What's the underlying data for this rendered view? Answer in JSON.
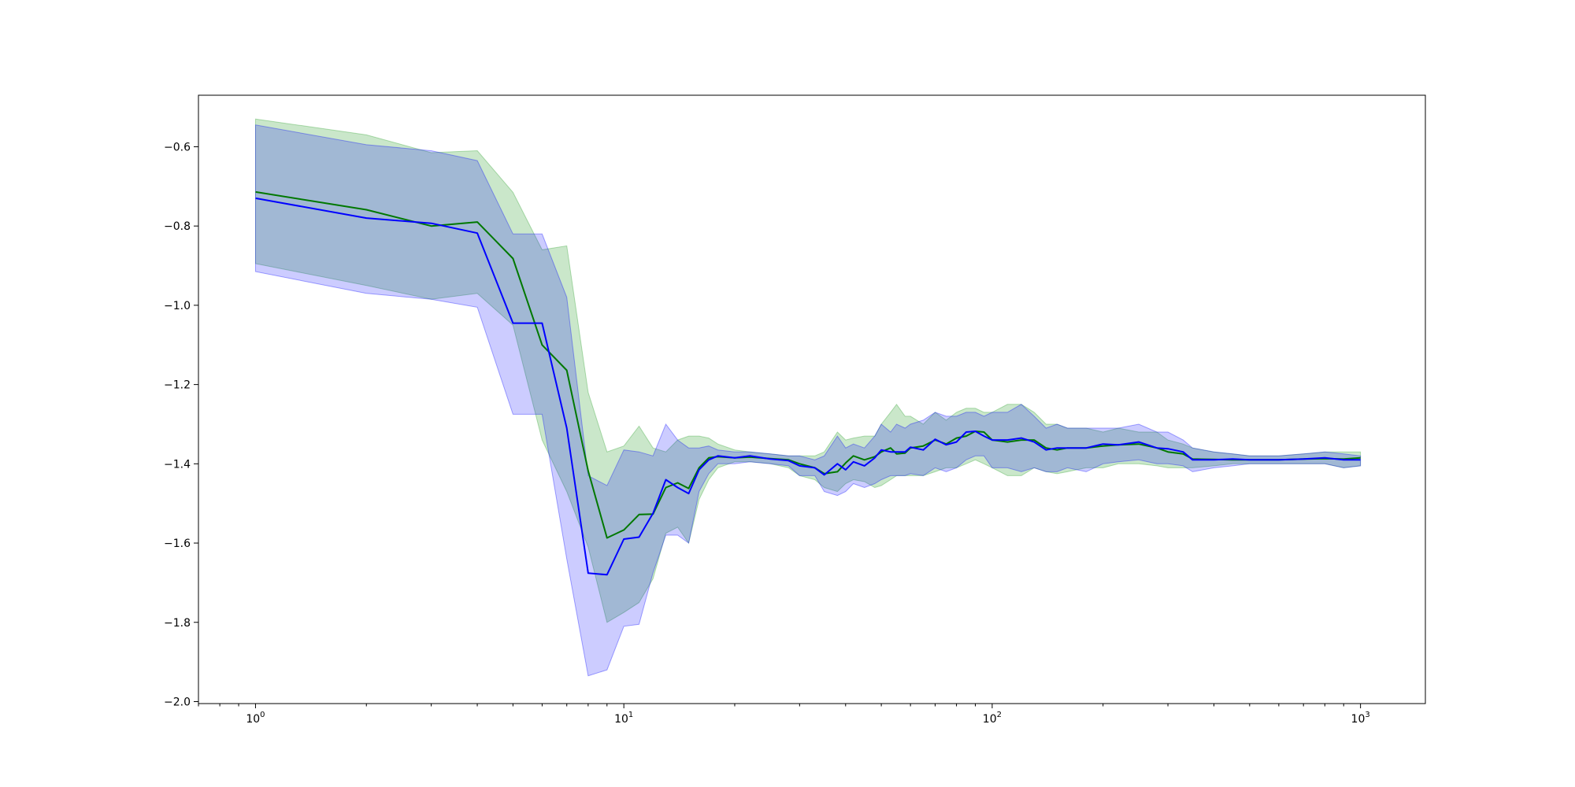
{
  "chart_data": {
    "type": "line",
    "title": "",
    "xlabel": "",
    "ylabel": "",
    "xscale": "log",
    "xlim": [
      0.7,
      1500
    ],
    "ylim": [
      -2.005,
      -0.47
    ],
    "grid": false,
    "legend": "none",
    "x_ticks": [
      {
        "base": "10",
        "exp": "0",
        "value": 1
      },
      {
        "base": "10",
        "exp": "1",
        "value": 10
      },
      {
        "base": "10",
        "exp": "2",
        "value": 100
      },
      {
        "base": "10",
        "exp": "3",
        "value": 1000
      }
    ],
    "y_ticks": [
      {
        "label": "−0.6",
        "value": -0.6
      },
      {
        "label": "−0.8",
        "value": -0.8
      },
      {
        "label": "−1.0",
        "value": -1.0
      },
      {
        "label": "−1.2",
        "value": -1.2
      },
      {
        "label": "−1.4",
        "value": -1.4
      },
      {
        "label": "−1.6",
        "value": -1.6
      },
      {
        "label": "−1.8",
        "value": -1.8
      },
      {
        "label": "−2.0",
        "value": -2.0
      }
    ],
    "series": [
      {
        "color": "#007800",
        "band_color": "#2ca02c",
        "band_opacity": 0.25,
        "x": [
          1,
          2,
          3,
          4,
          5,
          6,
          7,
          8,
          9,
          10,
          11,
          12,
          13,
          14,
          15,
          16,
          17,
          18,
          20,
          22,
          25,
          28,
          30,
          33,
          35,
          38,
          40,
          42,
          45,
          48,
          50,
          53,
          55,
          58,
          60,
          65,
          70,
          75,
          80,
          85,
          90,
          95,
          100,
          110,
          120,
          130,
          140,
          150,
          160,
          180,
          200,
          220,
          250,
          280,
          300,
          330,
          350,
          400,
          450,
          500,
          600,
          700,
          800,
          900,
          1000
        ],
        "y": [
          -0.714,
          -0.759,
          -0.8,
          -0.79,
          -0.882,
          -1.1,
          -1.164,
          -1.418,
          -1.587,
          -1.567,
          -1.528,
          -1.527,
          -1.46,
          -1.448,
          -1.462,
          -1.41,
          -1.385,
          -1.382,
          -1.385,
          -1.383,
          -1.387,
          -1.39,
          -1.4,
          -1.41,
          -1.425,
          -1.42,
          -1.398,
          -1.38,
          -1.39,
          -1.382,
          -1.37,
          -1.36,
          -1.375,
          -1.373,
          -1.36,
          -1.355,
          -1.34,
          -1.35,
          -1.335,
          -1.33,
          -1.318,
          -1.32,
          -1.34,
          -1.345,
          -1.34,
          -1.34,
          -1.36,
          -1.365,
          -1.36,
          -1.36,
          -1.355,
          -1.352,
          -1.35,
          -1.36,
          -1.37,
          -1.375,
          -1.388,
          -1.389,
          -1.39,
          -1.39,
          -1.39,
          -1.388,
          -1.387,
          -1.388,
          -1.385
        ],
        "upper": [
          -0.53,
          -0.57,
          -0.615,
          -0.61,
          -0.715,
          -0.86,
          -0.85,
          -1.22,
          -1.37,
          -1.355,
          -1.305,
          -1.36,
          -1.37,
          -1.34,
          -1.33,
          -1.33,
          -1.335,
          -1.35,
          -1.365,
          -1.37,
          -1.375,
          -1.38,
          -1.38,
          -1.38,
          -1.37,
          -1.32,
          -1.34,
          -1.335,
          -1.33,
          -1.33,
          -1.3,
          -1.27,
          -1.25,
          -1.28,
          -1.28,
          -1.3,
          -1.27,
          -1.29,
          -1.27,
          -1.26,
          -1.26,
          -1.27,
          -1.27,
          -1.25,
          -1.25,
          -1.27,
          -1.3,
          -1.3,
          -1.31,
          -1.31,
          -1.32,
          -1.31,
          -1.32,
          -1.32,
          -1.34,
          -1.35,
          -1.36,
          -1.37,
          -1.375,
          -1.38,
          -1.38,
          -1.375,
          -1.37,
          -1.37,
          -1.37
        ],
        "lower": [
          -0.895,
          -0.95,
          -0.985,
          -0.97,
          -1.05,
          -1.34,
          -1.47,
          -1.61,
          -1.8,
          -1.775,
          -1.75,
          -1.69,
          -1.575,
          -1.56,
          -1.6,
          -1.49,
          -1.44,
          -1.41,
          -1.395,
          -1.395,
          -1.4,
          -1.41,
          -1.43,
          -1.44,
          -1.46,
          -1.47,
          -1.45,
          -1.44,
          -1.445,
          -1.46,
          -1.455,
          -1.44,
          -1.43,
          -1.43,
          -1.43,
          -1.43,
          -1.42,
          -1.41,
          -1.41,
          -1.4,
          -1.39,
          -1.4,
          -1.41,
          -1.43,
          -1.43,
          -1.41,
          -1.42,
          -1.425,
          -1.42,
          -1.41,
          -1.41,
          -1.4,
          -1.4,
          -1.405,
          -1.41,
          -1.41,
          -1.41,
          -1.405,
          -1.4,
          -1.4,
          -1.4,
          -1.4,
          -1.4,
          -1.41,
          -1.405
        ]
      },
      {
        "color": "#0000ff",
        "band_color": "#0000ff",
        "band_opacity": 0.2,
        "x": [
          1,
          2,
          3,
          4,
          5,
          6,
          7,
          8,
          9,
          10,
          11,
          12,
          13,
          14,
          15,
          16,
          17,
          18,
          20,
          22,
          25,
          28,
          30,
          33,
          35,
          38,
          40,
          42,
          45,
          48,
          50,
          53,
          55,
          58,
          60,
          65,
          70,
          75,
          80,
          85,
          90,
          95,
          100,
          110,
          120,
          130,
          140,
          150,
          160,
          180,
          200,
          220,
          250,
          280,
          300,
          330,
          350,
          400,
          450,
          500,
          600,
          700,
          800,
          900,
          1000
        ],
        "y": [
          -0.73,
          -0.78,
          -0.793,
          -0.818,
          -1.045,
          -1.045,
          -1.31,
          -1.676,
          -1.68,
          -1.59,
          -1.585,
          -1.525,
          -1.44,
          -1.46,
          -1.475,
          -1.415,
          -1.39,
          -1.38,
          -1.385,
          -1.38,
          -1.388,
          -1.392,
          -1.405,
          -1.41,
          -1.428,
          -1.4,
          -1.415,
          -1.395,
          -1.405,
          -1.385,
          -1.365,
          -1.37,
          -1.37,
          -1.37,
          -1.358,
          -1.365,
          -1.338,
          -1.352,
          -1.345,
          -1.32,
          -1.318,
          -1.33,
          -1.34,
          -1.34,
          -1.335,
          -1.345,
          -1.365,
          -1.36,
          -1.36,
          -1.36,
          -1.35,
          -1.352,
          -1.345,
          -1.36,
          -1.362,
          -1.37,
          -1.39,
          -1.39,
          -1.388,
          -1.39,
          -1.39,
          -1.388,
          -1.385,
          -1.39,
          -1.39
        ],
        "upper": [
          -0.545,
          -0.595,
          -0.61,
          -0.635,
          -0.82,
          -0.82,
          -0.98,
          -1.43,
          -1.455,
          -1.365,
          -1.37,
          -1.38,
          -1.3,
          -1.34,
          -1.36,
          -1.36,
          -1.355,
          -1.365,
          -1.37,
          -1.37,
          -1.375,
          -1.38,
          -1.38,
          -1.39,
          -1.38,
          -1.33,
          -1.36,
          -1.35,
          -1.36,
          -1.33,
          -1.3,
          -1.32,
          -1.3,
          -1.31,
          -1.3,
          -1.29,
          -1.27,
          -1.28,
          -1.28,
          -1.27,
          -1.27,
          -1.28,
          -1.27,
          -1.27,
          -1.25,
          -1.28,
          -1.31,
          -1.3,
          -1.31,
          -1.31,
          -1.31,
          -1.31,
          -1.3,
          -1.32,
          -1.32,
          -1.34,
          -1.36,
          -1.37,
          -1.375,
          -1.38,
          -1.38,
          -1.375,
          -1.37,
          -1.375,
          -1.38
        ],
        "lower": [
          -0.915,
          -0.97,
          -0.985,
          -1.005,
          -1.275,
          -1.275,
          -1.64,
          -1.935,
          -1.92,
          -1.81,
          -1.805,
          -1.675,
          -1.58,
          -1.58,
          -1.6,
          -1.47,
          -1.425,
          -1.4,
          -1.4,
          -1.395,
          -1.4,
          -1.405,
          -1.43,
          -1.43,
          -1.47,
          -1.48,
          -1.47,
          -1.45,
          -1.46,
          -1.45,
          -1.44,
          -1.43,
          -1.43,
          -1.43,
          -1.425,
          -1.43,
          -1.41,
          -1.42,
          -1.41,
          -1.39,
          -1.38,
          -1.38,
          -1.41,
          -1.41,
          -1.42,
          -1.41,
          -1.42,
          -1.42,
          -1.41,
          -1.42,
          -1.4,
          -1.395,
          -1.39,
          -1.4,
          -1.4,
          -1.405,
          -1.42,
          -1.41,
          -1.405,
          -1.4,
          -1.4,
          -1.4,
          -1.4,
          -1.41,
          -1.405
        ]
      }
    ]
  }
}
